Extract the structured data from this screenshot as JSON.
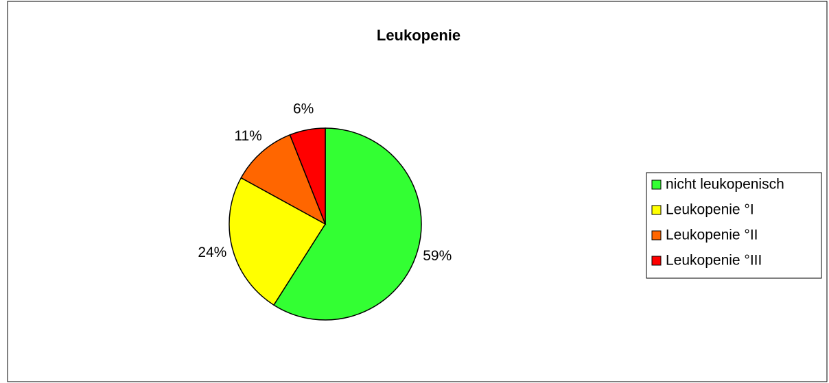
{
  "chart_data": {
    "type": "pie",
    "title": "Leukopenie",
    "categories": [
      "nicht leukopenisch",
      "Leukopenie °I",
      "Leukopenie °II",
      "Leukopenie °III"
    ],
    "values": [
      59,
      24,
      11,
      6
    ],
    "value_labels": [
      "59%",
      "24%",
      "11%",
      "6%"
    ],
    "colors": [
      "#33ff33",
      "#ffff00",
      "#ff6600",
      "#ff0000"
    ],
    "legend": "right"
  }
}
